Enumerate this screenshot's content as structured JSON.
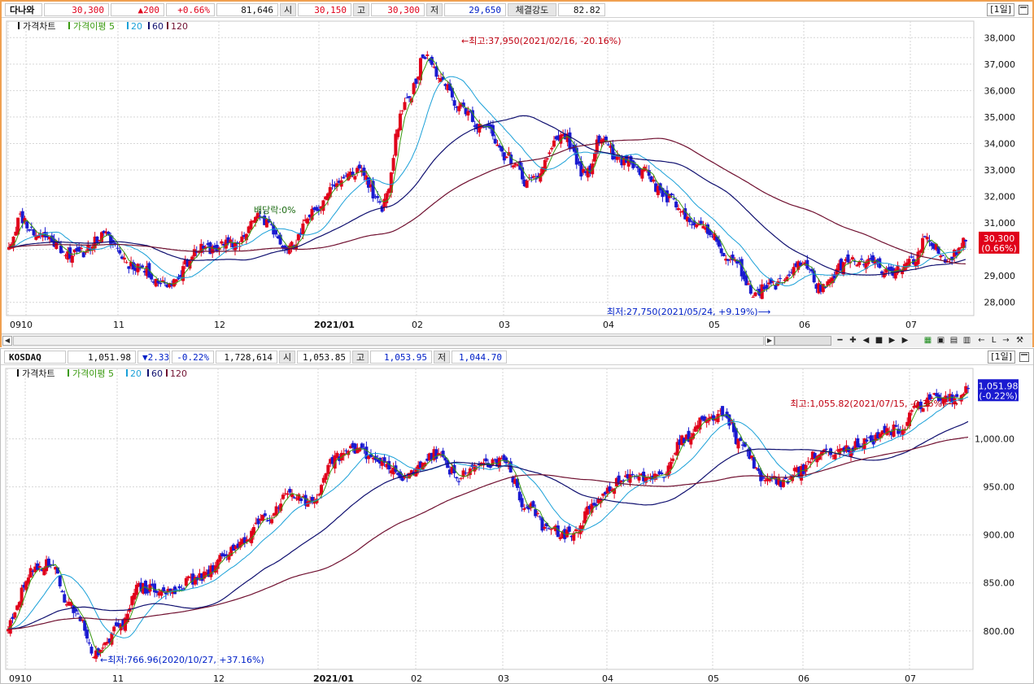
{
  "top_panel": {
    "info": {
      "name": "다나와",
      "price": "30,300",
      "change": "▲200",
      "change_pct": "+0.66%",
      "volume": "81,646",
      "open_label": "시",
      "open": "30,150",
      "high_label": "고",
      "high": "30,300",
      "low_label": "저",
      "low": "29,650",
      "strength_label": "체결강도",
      "strength": "82.82",
      "period": "[1일]"
    },
    "legend": {
      "price": "가격차트",
      "ma_label": "가격이평",
      "ma5": "5",
      "ma20": "20",
      "ma60": "60",
      "ma120": "120"
    },
    "price_tag": "30,300",
    "price_tag_pct": "(0.66%)",
    "annotations": {
      "high": "←최고:37,950(2021/02/16, -20.16%)",
      "low": "최저:27,750(2021/05/24, +9.19%)⟶",
      "dividend": "배당락:0%"
    }
  },
  "bottom_panel": {
    "info": {
      "name": "KOSDAQ",
      "price": "1,051.98",
      "change": "▼2.33",
      "change_pct": "-0.22%",
      "volume": "1,728,614",
      "open_label": "시",
      "open": "1,053.85",
      "high_label": "고",
      "high": "1,053.95",
      "low_label": "저",
      "low": "1,044.70",
      "period": "[1일]"
    },
    "legend": {
      "price": "가격차트",
      "ma_label": "가격이평",
      "ma5": "5",
      "ma20": "20",
      "ma60": "60",
      "ma120": "120"
    },
    "price_tag": "1,051.98",
    "price_tag_pct": "(-0.22%)",
    "annotations": {
      "high": "최고:1,055.82(2021/07/15, -0.36%)⟶",
      "low": "←최저:766.96(2020/10/27, +37.16%)"
    }
  },
  "colors": {
    "up": "#e0001a",
    "down": "#1a1ad0",
    "ma5": "#3a9a10",
    "ma20": "#1aa0d8",
    "ma60": "#101070",
    "ma120": "#701030",
    "grid": "#d6d6d6"
  },
  "chart_data": [
    {
      "type": "candlestick",
      "title": "다나와",
      "x_labels": [
        "09",
        "10",
        "11",
        "12",
        "2021/01",
        "02",
        "03",
        "04",
        "05",
        "06",
        "07"
      ],
      "y_ticks": [
        "28,000",
        "29,000",
        "30,000",
        "31,000",
        "32,000",
        "33,000",
        "34,000",
        "35,000",
        "36,000",
        "37,000",
        "38,000"
      ],
      "ylim": [
        27500,
        38500
      ],
      "grid": true,
      "series": [
        {
          "name": "가격차트",
          "kind": "candles",
          "anchors": [
            [
              0,
              30200
            ],
            [
              5,
              31200
            ],
            [
              12,
              30600
            ],
            [
              30,
              29800
            ],
            [
              42,
              30500
            ],
            [
              55,
              29400
            ],
            [
              70,
              28700
            ],
            [
              85,
              30000
            ],
            [
              100,
              30200
            ],
            [
              110,
              31200
            ],
            [
              125,
              30100
            ],
            [
              135,
              31500
            ],
            [
              145,
              32500
            ],
            [
              155,
              33000
            ],
            [
              165,
              31600
            ],
            [
              175,
              35500
            ],
            [
              185,
              37400
            ],
            [
              190,
              36600
            ],
            [
              200,
              35300
            ],
            [
              210,
              34600
            ],
            [
              220,
              33500
            ],
            [
              230,
              32500
            ],
            [
              245,
              34300
            ],
            [
              255,
              32800
            ],
            [
              262,
              34200
            ],
            [
              270,
              33300
            ],
            [
              280,
              33000
            ],
            [
              290,
              32000
            ],
            [
              300,
              31200
            ],
            [
              310,
              30600
            ],
            [
              320,
              29500
            ],
            [
              330,
              28400
            ],
            [
              340,
              28700
            ],
            [
              350,
              29500
            ],
            [
              360,
              28500
            ],
            [
              370,
              29500
            ],
            [
              380,
              29500
            ],
            [
              390,
              29200
            ],
            [
              400,
              29500
            ],
            [
              405,
              30300
            ],
            [
              415,
              29700
            ],
            [
              423,
              30300
            ]
          ]
        },
        {
          "name": "5",
          "kind": "ma",
          "window": 5
        },
        {
          "name": "20",
          "kind": "ma",
          "window": 20
        },
        {
          "name": "60",
          "kind": "ma",
          "window": 60
        },
        {
          "name": "120",
          "kind": "ma",
          "window": 120
        }
      ],
      "last": 30300,
      "high": {
        "value": 37950,
        "date": "2021/02/16"
      },
      "low": {
        "value": 27750,
        "date": "2021/05/24"
      }
    },
    {
      "type": "candlestick",
      "title": "KOSDAQ",
      "x_labels": [
        "09",
        "10",
        "11",
        "12",
        "2021/01",
        "02",
        "03",
        "04",
        "05",
        "06",
        "07"
      ],
      "y_ticks": [
        "800.00",
        "850.00",
        "900.00",
        "950.00",
        "1,000.00"
      ],
      "ylim": [
        760,
        1070
      ],
      "grid": true,
      "series": [
        {
          "name": "가격차트",
          "kind": "candles",
          "anchors": [
            [
              0,
              805
            ],
            [
              10,
              860
            ],
            [
              18,
              872
            ],
            [
              28,
              825
            ],
            [
              40,
              775
            ],
            [
              48,
              800
            ],
            [
              58,
              845
            ],
            [
              70,
              840
            ],
            [
              85,
              855
            ],
            [
              100,
              885
            ],
            [
              115,
              920
            ],
            [
              125,
              945
            ],
            [
              135,
              930
            ],
            [
              145,
              980
            ],
            [
              155,
              990
            ],
            [
              165,
              975
            ],
            [
              175,
              960
            ],
            [
              190,
              985
            ],
            [
              200,
              960
            ],
            [
              210,
              975
            ],
            [
              220,
              975
            ],
            [
              230,
              930
            ],
            [
              240,
              905
            ],
            [
              250,
              900
            ],
            [
              260,
              930
            ],
            [
              270,
              955
            ],
            [
              280,
              960
            ],
            [
              290,
              965
            ],
            [
              300,
              1000
            ],
            [
              310,
              1025
            ],
            [
              318,
              1025
            ],
            [
              325,
              995
            ],
            [
              335,
              960
            ],
            [
              345,
              955
            ],
            [
              350,
              965
            ],
            [
              360,
              985
            ],
            [
              370,
              990
            ],
            [
              380,
              995
            ],
            [
              395,
              1010
            ],
            [
              405,
              1035
            ],
            [
              413,
              1045
            ],
            [
              420,
              1042
            ],
            [
              426,
              1052
            ]
          ]
        },
        {
          "name": "5",
          "kind": "ma",
          "window": 5
        },
        {
          "name": "20",
          "kind": "ma",
          "window": 20
        },
        {
          "name": "60",
          "kind": "ma",
          "window": 60
        },
        {
          "name": "120",
          "kind": "ma",
          "window": 120
        }
      ],
      "last": 1051.98,
      "high": {
        "value": 1055.82,
        "date": "2021/07/15"
      },
      "low": {
        "value": 766.96,
        "date": "2020/10/27"
      }
    }
  ]
}
